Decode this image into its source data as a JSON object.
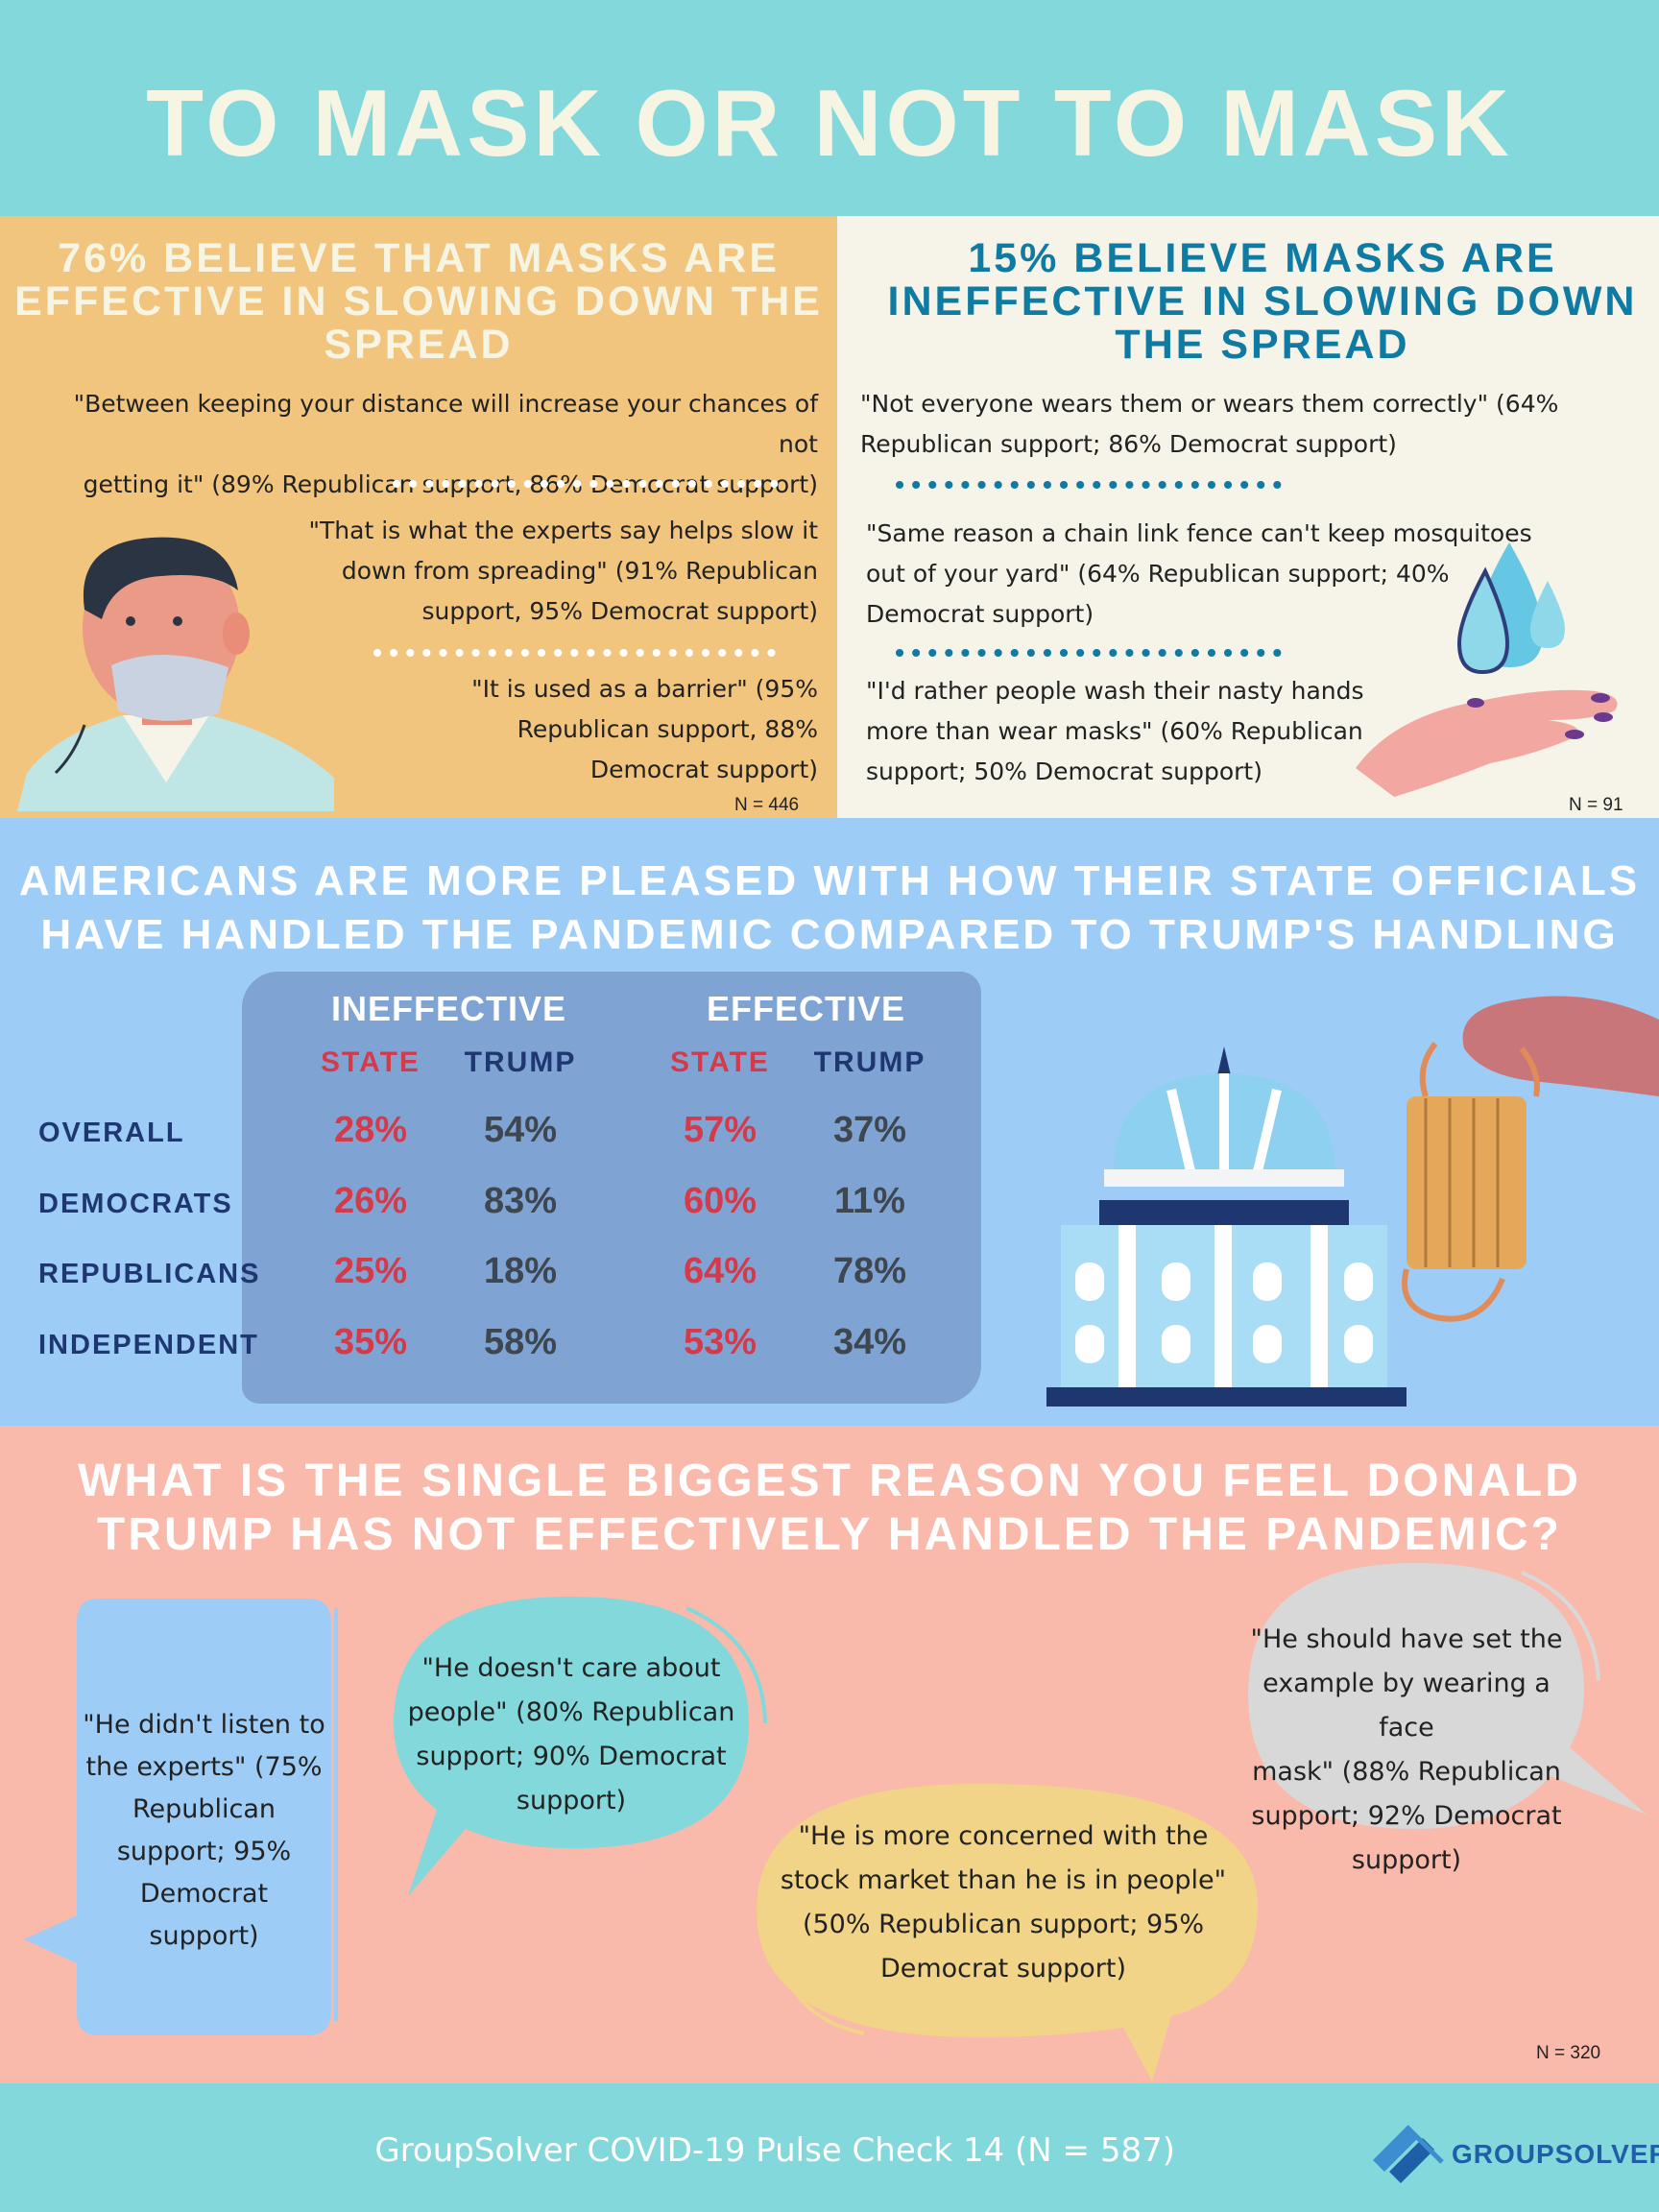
{
  "header": {
    "title": "TO MASK OR NOT TO MASK"
  },
  "mask_effective": {
    "heading": [
      "76% BELIEVE THAT MASKS ARE",
      "EFFECTIVE IN SLOWING DOWN THE",
      "SPREAD"
    ],
    "quotes": [
      [
        "\"Between keeping your distance will increase your chances of not",
        "getting it\" (89% Republican support, 86% Democrat support)"
      ],
      [
        "\"That is what the experts say helps slow it",
        "down from spreading\" (91% Republican",
        "support, 95% Democrat support)"
      ],
      [
        "\"It is used as a barrier\" (95%",
        "Republican support, 88%",
        "Democrat support)"
      ]
    ],
    "n": "N = 446"
  },
  "mask_ineffective": {
    "heading": [
      "15% BELIEVE MASKS ARE",
      "INEFFECTIVE IN SLOWING DOWN",
      "THE SPREAD"
    ],
    "quotes": [
      [
        "\"Not everyone wears them or wears them correctly\" (64%",
        "Republican support; 86% Democrat support)"
      ],
      [
        "\"Same reason a chain link fence can't keep mosquitoes",
        "out of your yard\" (64% Republican support; 40%",
        "Democrat support)"
      ],
      [
        "\"I'd rather people wash their nasty hands",
        "more than wear masks\" (60% Republican",
        "support; 50% Democrat support)"
      ]
    ],
    "n": "N = 91"
  },
  "officials": {
    "heading": [
      "AMERICANS ARE MORE PLEASED WITH HOW THEIR STATE OFFICIALS",
      "HAVE HANDLED THE PANDEMIC COMPARED TO TRUMP'S HANDLING"
    ],
    "groups": [
      "INEFFECTIVE",
      "EFFECTIVE"
    ],
    "columns": [
      "STATE",
      "TRUMP",
      "STATE",
      "TRUMP"
    ],
    "rows": [
      {
        "label": "OVERALL",
        "values": [
          "28%",
          "54%",
          "57%",
          "37%"
        ]
      },
      {
        "label": "DEMOCRATS",
        "values": [
          "26%",
          "83%",
          "60%",
          "11%"
        ]
      },
      {
        "label": "REPUBLICANS",
        "values": [
          "25%",
          "18%",
          "64%",
          "78%"
        ]
      },
      {
        "label": "INDEPENDENT",
        "values": [
          "35%",
          "58%",
          "53%",
          "34%"
        ]
      }
    ],
    "colors": {
      "state": "#d43a4a",
      "trump": "#3e4650",
      "header_label": "#1f3771"
    }
  },
  "reasons": {
    "heading": [
      "WHAT IS THE SINGLE BIGGEST REASON YOU FEEL DONALD",
      "TRUMP HAS NOT EFFECTIVELY HANDLED THE PANDEMIC?"
    ],
    "bubbles": [
      [
        "\"He didn't listen to",
        "the experts\" (75%",
        "Republican",
        "support; 95%",
        "Democrat",
        "support)"
      ],
      [
        "\"He doesn't care about",
        "people\" (80% Republican",
        "support; 90% Democrat",
        "support)"
      ],
      [
        "\"He is more concerned with the",
        "stock market than he is in people\"",
        "(50% Republican support; 95%",
        "Democrat support)"
      ],
      [
        "\"He should have set the",
        "example by wearing a face",
        "mask\" (88% Republican",
        "support; 92% Democrat",
        "support)"
      ]
    ],
    "n": "N = 320"
  },
  "footer": {
    "text": "GroupSolver COVID-19 Pulse Check 14 (N = 587)",
    "brand": "GROUPSOLVER"
  }
}
